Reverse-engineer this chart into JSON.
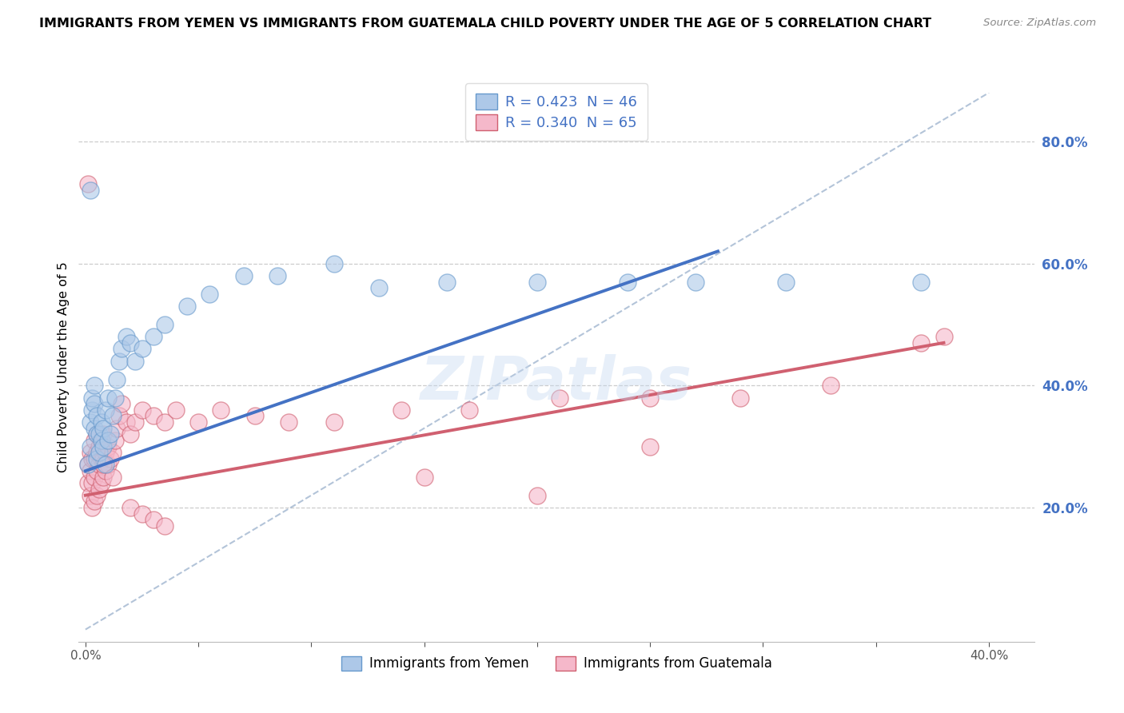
{
  "title": "IMMIGRANTS FROM YEMEN VS IMMIGRANTS FROM GUATEMALA CHILD POVERTY UNDER THE AGE OF 5 CORRELATION CHART",
  "source": "Source: ZipAtlas.com",
  "ylabel": "Child Poverty Under the Age of 5",
  "xlim": [
    -0.003,
    0.42
  ],
  "ylim": [
    -0.02,
    0.88
  ],
  "yticks_right": [
    0.2,
    0.4,
    0.6,
    0.8
  ],
  "ytick_right_labels": [
    "20.0%",
    "40.0%",
    "60.0%",
    "80.0%"
  ],
  "legend_label1": "R = 0.423  N = 46",
  "legend_label2": "R = 0.340  N = 65",
  "color_yemen_face": "#adc8e8",
  "color_yemen_edge": "#6699cc",
  "color_guatemala_face": "#f5b8ca",
  "color_guatemala_edge": "#d06070",
  "color_line_yemen": "#4472c4",
  "color_line_guatemala": "#d06070",
  "color_diagonal": "#9ab0cc",
  "watermark": "ZIPatlas",
  "bottom_legend_label_yemen": "Immigrants from Yemen",
  "bottom_legend_label_guatemala": "Immigrants from Guatemala",
  "yemen_x": [
    0.001,
    0.002,
    0.002,
    0.003,
    0.003,
    0.004,
    0.004,
    0.004,
    0.005,
    0.005,
    0.005,
    0.006,
    0.006,
    0.007,
    0.007,
    0.008,
    0.008,
    0.009,
    0.009,
    0.01,
    0.01,
    0.011,
    0.012,
    0.013,
    0.014,
    0.015,
    0.016,
    0.018,
    0.02,
    0.022,
    0.025,
    0.03,
    0.035,
    0.045,
    0.055,
    0.07,
    0.085,
    0.11,
    0.13,
    0.16,
    0.2,
    0.24,
    0.27,
    0.31,
    0.37,
    0.002
  ],
  "yemen_y": [
    0.27,
    0.3,
    0.34,
    0.36,
    0.38,
    0.33,
    0.37,
    0.4,
    0.28,
    0.32,
    0.35,
    0.29,
    0.32,
    0.31,
    0.34,
    0.3,
    0.33,
    0.27,
    0.36,
    0.31,
    0.38,
    0.32,
    0.35,
    0.38,
    0.41,
    0.44,
    0.46,
    0.48,
    0.47,
    0.44,
    0.46,
    0.48,
    0.5,
    0.53,
    0.55,
    0.58,
    0.58,
    0.6,
    0.56,
    0.57,
    0.57,
    0.57,
    0.57,
    0.57,
    0.57,
    0.72
  ],
  "guatemala_x": [
    0.001,
    0.001,
    0.002,
    0.002,
    0.002,
    0.003,
    0.003,
    0.003,
    0.004,
    0.004,
    0.004,
    0.004,
    0.005,
    0.005,
    0.005,
    0.005,
    0.006,
    0.006,
    0.006,
    0.007,
    0.007,
    0.007,
    0.008,
    0.008,
    0.008,
    0.009,
    0.009,
    0.01,
    0.01,
    0.011,
    0.012,
    0.013,
    0.014,
    0.015,
    0.016,
    0.018,
    0.02,
    0.022,
    0.025,
    0.03,
    0.035,
    0.04,
    0.05,
    0.06,
    0.075,
    0.09,
    0.11,
    0.14,
    0.17,
    0.21,
    0.25,
    0.29,
    0.33,
    0.37,
    0.38,
    0.008,
    0.012,
    0.02,
    0.025,
    0.03,
    0.035,
    0.15,
    0.2,
    0.25,
    0.001
  ],
  "guatemala_y": [
    0.24,
    0.27,
    0.22,
    0.26,
    0.29,
    0.2,
    0.24,
    0.28,
    0.21,
    0.25,
    0.28,
    0.31,
    0.22,
    0.26,
    0.29,
    0.32,
    0.23,
    0.27,
    0.3,
    0.24,
    0.28,
    0.31,
    0.25,
    0.28,
    0.32,
    0.26,
    0.29,
    0.27,
    0.3,
    0.28,
    0.29,
    0.31,
    0.33,
    0.35,
    0.37,
    0.34,
    0.32,
    0.34,
    0.36,
    0.35,
    0.34,
    0.36,
    0.34,
    0.36,
    0.35,
    0.34,
    0.34,
    0.36,
    0.36,
    0.38,
    0.38,
    0.38,
    0.4,
    0.47,
    0.48,
    0.27,
    0.25,
    0.2,
    0.19,
    0.18,
    0.17,
    0.25,
    0.22,
    0.3,
    0.73
  ],
  "yemen_line": [
    [
      0.0,
      0.26
    ],
    [
      0.28,
      0.62
    ]
  ],
  "guatemala_line": [
    [
      0.0,
      0.22
    ],
    [
      0.38,
      0.47
    ]
  ]
}
